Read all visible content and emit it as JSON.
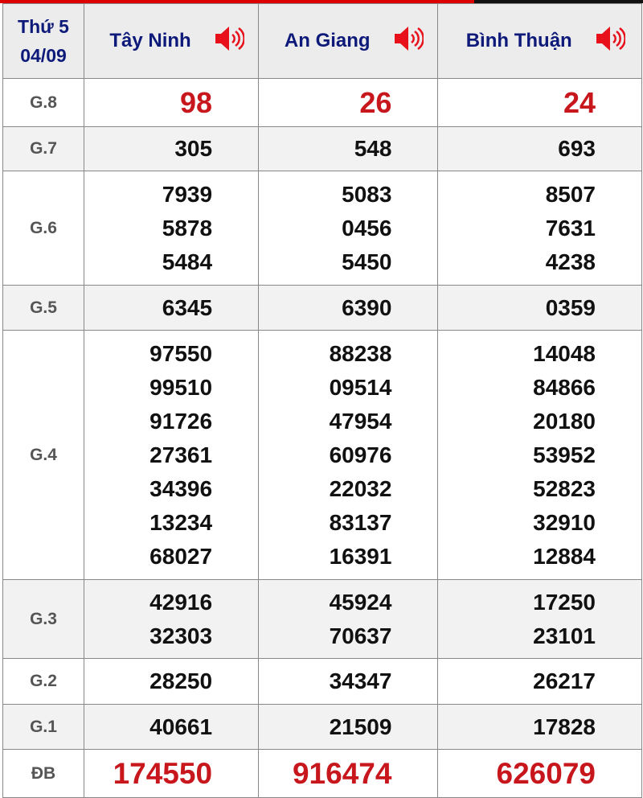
{
  "header": {
    "day": "Thứ 5",
    "date": "04/09",
    "provinces": [
      "Tây Ninh",
      "An Giang",
      "Bình Thuận"
    ],
    "speaker_icon": "speaker-icon"
  },
  "colors": {
    "title": "#0d1a7a",
    "accent": "#c8161d"
  },
  "prizes": [
    {
      "label": "G.8",
      "values": [
        [
          "98"
        ],
        [
          "26"
        ],
        [
          "24"
        ]
      ]
    },
    {
      "label": "G.7",
      "values": [
        [
          "305"
        ],
        [
          "548"
        ],
        [
          "693"
        ]
      ]
    },
    {
      "label": "G.6",
      "values": [
        [
          "7939",
          "5878",
          "5484"
        ],
        [
          "5083",
          "0456",
          "5450"
        ],
        [
          "8507",
          "7631",
          "4238"
        ]
      ]
    },
    {
      "label": "G.5",
      "values": [
        [
          "6345"
        ],
        [
          "6390"
        ],
        [
          "0359"
        ]
      ]
    },
    {
      "label": "G.4",
      "values": [
        [
          "97550",
          "99510",
          "91726",
          "27361",
          "34396",
          "13234",
          "68027"
        ],
        [
          "88238",
          "09514",
          "47954",
          "60976",
          "22032",
          "83137",
          "16391"
        ],
        [
          "14048",
          "84866",
          "20180",
          "53952",
          "52823",
          "32910",
          "12884"
        ]
      ]
    },
    {
      "label": "G.3",
      "values": [
        [
          "42916",
          "32303"
        ],
        [
          "45924",
          "70637"
        ],
        [
          "17250",
          "23101"
        ]
      ]
    },
    {
      "label": "G.2",
      "values": [
        [
          "28250"
        ],
        [
          "34347"
        ],
        [
          "26217"
        ]
      ]
    },
    {
      "label": "G.1",
      "values": [
        [
          "40661"
        ],
        [
          "21509"
        ],
        [
          "17828"
        ]
      ]
    },
    {
      "label": "ĐB",
      "values": [
        [
          "174550"
        ],
        [
          "916474"
        ],
        [
          "626079"
        ]
      ]
    }
  ]
}
